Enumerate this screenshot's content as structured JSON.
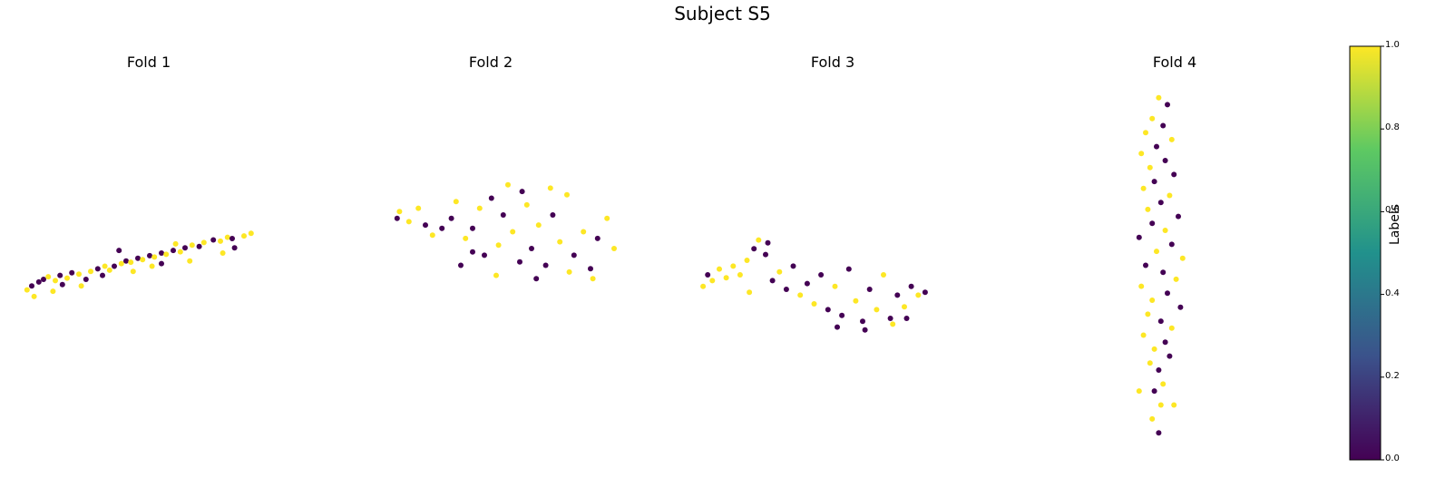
{
  "figure_title": "Subject S5",
  "colors": {
    "low": "#440154",
    "high": "#fde725"
  },
  "chart_data": [
    {
      "type": "scatter",
      "title": "Fold 1",
      "label_colorbar": "Labels",
      "points": [
        {
          "x": 0.03,
          "y": 0.52,
          "c": 1
        },
        {
          "x": 0.05,
          "y": 0.55,
          "c": 0
        },
        {
          "x": 0.08,
          "y": 0.58,
          "c": 0
        },
        {
          "x": 0.1,
          "y": 0.6,
          "c": 0
        },
        {
          "x": 0.12,
          "y": 0.62,
          "c": 1
        },
        {
          "x": 0.15,
          "y": 0.59,
          "c": 1
        },
        {
          "x": 0.17,
          "y": 0.63,
          "c": 0
        },
        {
          "x": 0.2,
          "y": 0.61,
          "c": 1
        },
        {
          "x": 0.22,
          "y": 0.65,
          "c": 0
        },
        {
          "x": 0.25,
          "y": 0.64,
          "c": 1
        },
        {
          "x": 0.28,
          "y": 0.6,
          "c": 0
        },
        {
          "x": 0.3,
          "y": 0.66,
          "c": 1
        },
        {
          "x": 0.33,
          "y": 0.68,
          "c": 0
        },
        {
          "x": 0.35,
          "y": 0.63,
          "c": 0
        },
        {
          "x": 0.38,
          "y": 0.67,
          "c": 1
        },
        {
          "x": 0.4,
          "y": 0.7,
          "c": 0
        },
        {
          "x": 0.43,
          "y": 0.72,
          "c": 1
        },
        {
          "x": 0.45,
          "y": 0.74,
          "c": 0
        },
        {
          "x": 0.47,
          "y": 0.73,
          "c": 1
        },
        {
          "x": 0.5,
          "y": 0.76,
          "c": 0
        },
        {
          "x": 0.52,
          "y": 0.75,
          "c": 1
        },
        {
          "x": 0.55,
          "y": 0.78,
          "c": 0
        },
        {
          "x": 0.57,
          "y": 0.77,
          "c": 1
        },
        {
          "x": 0.6,
          "y": 0.8,
          "c": 0
        },
        {
          "x": 0.62,
          "y": 0.79,
          "c": 1
        },
        {
          "x": 0.65,
          "y": 0.82,
          "c": 0
        },
        {
          "x": 0.68,
          "y": 0.81,
          "c": 1
        },
        {
          "x": 0.7,
          "y": 0.84,
          "c": 0
        },
        {
          "x": 0.73,
          "y": 0.86,
          "c": 1
        },
        {
          "x": 0.76,
          "y": 0.85,
          "c": 0
        },
        {
          "x": 0.78,
          "y": 0.88,
          "c": 1
        },
        {
          "x": 0.82,
          "y": 0.9,
          "c": 0
        },
        {
          "x": 0.85,
          "y": 0.89,
          "c": 1
        },
        {
          "x": 0.88,
          "y": 0.92,
          "c": 1
        },
        {
          "x": 0.9,
          "y": 0.91,
          "c": 0
        },
        {
          "x": 0.95,
          "y": 0.93,
          "c": 1
        },
        {
          "x": 0.98,
          "y": 0.95,
          "c": 1
        },
        {
          "x": 0.42,
          "y": 0.82,
          "c": 0
        },
        {
          "x": 0.56,
          "y": 0.7,
          "c": 1
        },
        {
          "x": 0.72,
          "y": 0.74,
          "c": 1
        },
        {
          "x": 0.26,
          "y": 0.55,
          "c": 1
        },
        {
          "x": 0.6,
          "y": 0.72,
          "c": 0
        },
        {
          "x": 0.86,
          "y": 0.8,
          "c": 1
        },
        {
          "x": 0.18,
          "y": 0.56,
          "c": 0
        },
        {
          "x": 0.06,
          "y": 0.47,
          "c": 1
        },
        {
          "x": 0.36,
          "y": 0.7,
          "c": 1
        },
        {
          "x": 0.66,
          "y": 0.87,
          "c": 1
        },
        {
          "x": 0.91,
          "y": 0.84,
          "c": 0
        },
        {
          "x": 0.48,
          "y": 0.66,
          "c": 1
        },
        {
          "x": 0.14,
          "y": 0.51,
          "c": 1
        }
      ]
    },
    {
      "type": "scatter",
      "title": "Fold 2",
      "points": [
        {
          "x": 0.03,
          "y": 0.78,
          "c": 0
        },
        {
          "x": 0.04,
          "y": 0.82,
          "c": 1
        },
        {
          "x": 0.08,
          "y": 0.76,
          "c": 1
        },
        {
          "x": 0.12,
          "y": 0.84,
          "c": 1
        },
        {
          "x": 0.15,
          "y": 0.74,
          "c": 0
        },
        {
          "x": 0.18,
          "y": 0.68,
          "c": 1
        },
        {
          "x": 0.22,
          "y": 0.72,
          "c": 0
        },
        {
          "x": 0.26,
          "y": 0.78,
          "c": 0
        },
        {
          "x": 0.28,
          "y": 0.88,
          "c": 1
        },
        {
          "x": 0.32,
          "y": 0.66,
          "c": 1
        },
        {
          "x": 0.35,
          "y": 0.72,
          "c": 0
        },
        {
          "x": 0.38,
          "y": 0.84,
          "c": 1
        },
        {
          "x": 0.4,
          "y": 0.56,
          "c": 0
        },
        {
          "x": 0.43,
          "y": 0.9,
          "c": 0
        },
        {
          "x": 0.46,
          "y": 0.62,
          "c": 1
        },
        {
          "x": 0.48,
          "y": 0.8,
          "c": 0
        },
        {
          "x": 0.52,
          "y": 0.7,
          "c": 1
        },
        {
          "x": 0.55,
          "y": 0.52,
          "c": 0
        },
        {
          "x": 0.58,
          "y": 0.86,
          "c": 1
        },
        {
          "x": 0.6,
          "y": 0.6,
          "c": 0
        },
        {
          "x": 0.63,
          "y": 0.74,
          "c": 1
        },
        {
          "x": 0.66,
          "y": 0.5,
          "c": 0
        },
        {
          "x": 0.69,
          "y": 0.8,
          "c": 0
        },
        {
          "x": 0.72,
          "y": 0.64,
          "c": 1
        },
        {
          "x": 0.75,
          "y": 0.92,
          "c": 1
        },
        {
          "x": 0.78,
          "y": 0.56,
          "c": 0
        },
        {
          "x": 0.82,
          "y": 0.7,
          "c": 1
        },
        {
          "x": 0.85,
          "y": 0.48,
          "c": 0
        },
        {
          "x": 0.88,
          "y": 0.66,
          "c": 0
        },
        {
          "x": 0.92,
          "y": 0.78,
          "c": 1
        },
        {
          "x": 0.95,
          "y": 0.6,
          "c": 1
        },
        {
          "x": 0.3,
          "y": 0.5,
          "c": 0
        },
        {
          "x": 0.45,
          "y": 0.44,
          "c": 1
        },
        {
          "x": 0.62,
          "y": 0.42,
          "c": 0
        },
        {
          "x": 0.76,
          "y": 0.46,
          "c": 1
        },
        {
          "x": 0.35,
          "y": 0.58,
          "c": 0
        },
        {
          "x": 0.5,
          "y": 0.98,
          "c": 1
        },
        {
          "x": 0.56,
          "y": 0.94,
          "c": 0
        },
        {
          "x": 0.68,
          "y": 0.96,
          "c": 1
        },
        {
          "x": 0.86,
          "y": 0.42,
          "c": 1
        }
      ]
    },
    {
      "type": "scatter",
      "title": "Fold 3",
      "points": [
        {
          "x": 0.02,
          "y": 0.62,
          "c": 1
        },
        {
          "x": 0.04,
          "y": 0.7,
          "c": 0
        },
        {
          "x": 0.06,
          "y": 0.66,
          "c": 1
        },
        {
          "x": 0.09,
          "y": 0.74,
          "c": 1
        },
        {
          "x": 0.12,
          "y": 0.68,
          "c": 1
        },
        {
          "x": 0.15,
          "y": 0.76,
          "c": 1
        },
        {
          "x": 0.18,
          "y": 0.7,
          "c": 1
        },
        {
          "x": 0.21,
          "y": 0.8,
          "c": 1
        },
        {
          "x": 0.24,
          "y": 0.88,
          "c": 0
        },
        {
          "x": 0.26,
          "y": 0.94,
          "c": 1
        },
        {
          "x": 0.29,
          "y": 0.84,
          "c": 0
        },
        {
          "x": 0.32,
          "y": 0.66,
          "c": 0
        },
        {
          "x": 0.35,
          "y": 0.72,
          "c": 1
        },
        {
          "x": 0.38,
          "y": 0.6,
          "c": 0
        },
        {
          "x": 0.41,
          "y": 0.76,
          "c": 0
        },
        {
          "x": 0.44,
          "y": 0.56,
          "c": 1
        },
        {
          "x": 0.47,
          "y": 0.64,
          "c": 0
        },
        {
          "x": 0.5,
          "y": 0.5,
          "c": 1
        },
        {
          "x": 0.53,
          "y": 0.7,
          "c": 0
        },
        {
          "x": 0.56,
          "y": 0.46,
          "c": 0
        },
        {
          "x": 0.59,
          "y": 0.62,
          "c": 1
        },
        {
          "x": 0.62,
          "y": 0.42,
          "c": 0
        },
        {
          "x": 0.65,
          "y": 0.74,
          "c": 0
        },
        {
          "x": 0.68,
          "y": 0.52,
          "c": 1
        },
        {
          "x": 0.71,
          "y": 0.38,
          "c": 0
        },
        {
          "x": 0.74,
          "y": 0.6,
          "c": 0
        },
        {
          "x": 0.77,
          "y": 0.46,
          "c": 1
        },
        {
          "x": 0.8,
          "y": 0.7,
          "c": 1
        },
        {
          "x": 0.83,
          "y": 0.4,
          "c": 0
        },
        {
          "x": 0.86,
          "y": 0.56,
          "c": 0
        },
        {
          "x": 0.89,
          "y": 0.48,
          "c": 1
        },
        {
          "x": 0.92,
          "y": 0.62,
          "c": 0
        },
        {
          "x": 0.95,
          "y": 0.56,
          "c": 1
        },
        {
          "x": 0.98,
          "y": 0.58,
          "c": 0
        },
        {
          "x": 0.6,
          "y": 0.34,
          "c": 0
        },
        {
          "x": 0.72,
          "y": 0.32,
          "c": 0
        },
        {
          "x": 0.84,
          "y": 0.36,
          "c": 1
        },
        {
          "x": 0.9,
          "y": 0.4,
          "c": 0
        },
        {
          "x": 0.3,
          "y": 0.92,
          "c": 0
        },
        {
          "x": 0.22,
          "y": 0.58,
          "c": 1
        }
      ]
    },
    {
      "type": "scatter",
      "title": "Fold 4",
      "points": [
        {
          "x": 0.52,
          "y": 0.02,
          "c": 1
        },
        {
          "x": 0.6,
          "y": 0.04,
          "c": 0
        },
        {
          "x": 0.46,
          "y": 0.08,
          "c": 1
        },
        {
          "x": 0.56,
          "y": 0.1,
          "c": 0
        },
        {
          "x": 0.4,
          "y": 0.12,
          "c": 1
        },
        {
          "x": 0.64,
          "y": 0.14,
          "c": 1
        },
        {
          "x": 0.5,
          "y": 0.16,
          "c": 0
        },
        {
          "x": 0.36,
          "y": 0.18,
          "c": 1
        },
        {
          "x": 0.58,
          "y": 0.2,
          "c": 0
        },
        {
          "x": 0.44,
          "y": 0.22,
          "c": 1
        },
        {
          "x": 0.66,
          "y": 0.24,
          "c": 0
        },
        {
          "x": 0.48,
          "y": 0.26,
          "c": 0
        },
        {
          "x": 0.38,
          "y": 0.28,
          "c": 1
        },
        {
          "x": 0.62,
          "y": 0.3,
          "c": 1
        },
        {
          "x": 0.54,
          "y": 0.32,
          "c": 0
        },
        {
          "x": 0.42,
          "y": 0.34,
          "c": 1
        },
        {
          "x": 0.7,
          "y": 0.36,
          "c": 0
        },
        {
          "x": 0.46,
          "y": 0.38,
          "c": 0
        },
        {
          "x": 0.58,
          "y": 0.4,
          "c": 1
        },
        {
          "x": 0.34,
          "y": 0.42,
          "c": 0
        },
        {
          "x": 0.64,
          "y": 0.44,
          "c": 0
        },
        {
          "x": 0.5,
          "y": 0.46,
          "c": 1
        },
        {
          "x": 0.74,
          "y": 0.48,
          "c": 1
        },
        {
          "x": 0.4,
          "y": 0.5,
          "c": 0
        },
        {
          "x": 0.56,
          "y": 0.52,
          "c": 0
        },
        {
          "x": 0.68,
          "y": 0.54,
          "c": 1
        },
        {
          "x": 0.36,
          "y": 0.56,
          "c": 1
        },
        {
          "x": 0.6,
          "y": 0.58,
          "c": 0
        },
        {
          "x": 0.46,
          "y": 0.6,
          "c": 1
        },
        {
          "x": 0.72,
          "y": 0.62,
          "c": 0
        },
        {
          "x": 0.42,
          "y": 0.64,
          "c": 1
        },
        {
          "x": 0.54,
          "y": 0.66,
          "c": 0
        },
        {
          "x": 0.64,
          "y": 0.68,
          "c": 1
        },
        {
          "x": 0.38,
          "y": 0.7,
          "c": 1
        },
        {
          "x": 0.58,
          "y": 0.72,
          "c": 0
        },
        {
          "x": 0.48,
          "y": 0.74,
          "c": 1
        },
        {
          "x": 0.62,
          "y": 0.76,
          "c": 0
        },
        {
          "x": 0.44,
          "y": 0.78,
          "c": 1
        },
        {
          "x": 0.52,
          "y": 0.8,
          "c": 0
        },
        {
          "x": 0.56,
          "y": 0.84,
          "c": 1
        },
        {
          "x": 0.48,
          "y": 0.86,
          "c": 0
        },
        {
          "x": 0.54,
          "y": 0.9,
          "c": 1
        },
        {
          "x": 0.46,
          "y": 0.94,
          "c": 1
        },
        {
          "x": 0.52,
          "y": 0.98,
          "c": 0
        },
        {
          "x": 0.66,
          "y": 0.9,
          "c": 1
        },
        {
          "x": 0.34,
          "y": 0.86,
          "c": 1
        }
      ]
    }
  ],
  "colorbar": {
    "label": "Labels",
    "ticks": [
      "0.0",
      "0.2",
      "0.4",
      "0.6",
      "0.8",
      "1.0"
    ],
    "min": 0,
    "max": 1
  }
}
